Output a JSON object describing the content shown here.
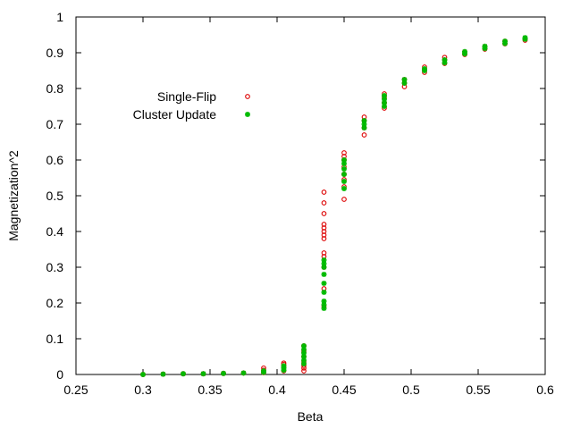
{
  "chart_data": {
    "type": "scatter",
    "title": "",
    "xlabel": "Beta",
    "ylabel": "Magnetization^2",
    "xlim": [
      0.25,
      0.6
    ],
    "ylim": [
      0,
      1
    ],
    "grid": false,
    "legend_position": "top-left",
    "x_ticks": [
      "0.25",
      "0.3",
      "0.35",
      "0.4",
      "0.45",
      "0.5",
      "0.55",
      "0.6"
    ],
    "y_ticks": [
      "0",
      "0.1",
      "0.2",
      "0.3",
      "0.4",
      "0.5",
      "0.6",
      "0.7",
      "0.8",
      "0.9",
      "1"
    ],
    "series": [
      {
        "name": "Single-Flip",
        "color": "#dd0000",
        "marker": "open-circle",
        "points": [
          [
            0.3,
            0.0
          ],
          [
            0.315,
            0.001
          ],
          [
            0.33,
            0.002
          ],
          [
            0.345,
            0.002
          ],
          [
            0.36,
            0.003
          ],
          [
            0.375,
            0.004
          ],
          [
            0.39,
            0.005
          ],
          [
            0.39,
            0.012
          ],
          [
            0.39,
            0.018
          ],
          [
            0.405,
            0.01
          ],
          [
            0.405,
            0.02
          ],
          [
            0.405,
            0.028
          ],
          [
            0.405,
            0.032
          ],
          [
            0.42,
            0.01
          ],
          [
            0.42,
            0.018
          ],
          [
            0.42,
            0.025
          ],
          [
            0.42,
            0.035
          ],
          [
            0.42,
            0.05
          ],
          [
            0.42,
            0.065
          ],
          [
            0.42,
            0.08
          ],
          [
            0.435,
            0.19
          ],
          [
            0.435,
            0.24
          ],
          [
            0.435,
            0.3
          ],
          [
            0.435,
            0.33
          ],
          [
            0.435,
            0.34
          ],
          [
            0.435,
            0.38
          ],
          [
            0.435,
            0.39
          ],
          [
            0.435,
            0.4
          ],
          [
            0.435,
            0.41
          ],
          [
            0.435,
            0.42
          ],
          [
            0.435,
            0.45
          ],
          [
            0.435,
            0.48
          ],
          [
            0.435,
            0.51
          ],
          [
            0.45,
            0.49
          ],
          [
            0.45,
            0.525
          ],
          [
            0.45,
            0.545
          ],
          [
            0.45,
            0.56
          ],
          [
            0.45,
            0.58
          ],
          [
            0.45,
            0.6
          ],
          [
            0.45,
            0.61
          ],
          [
            0.45,
            0.62
          ],
          [
            0.465,
            0.67
          ],
          [
            0.465,
            0.69
          ],
          [
            0.465,
            0.71
          ],
          [
            0.465,
            0.72
          ],
          [
            0.48,
            0.745
          ],
          [
            0.48,
            0.76
          ],
          [
            0.48,
            0.775
          ],
          [
            0.48,
            0.785
          ],
          [
            0.495,
            0.805
          ],
          [
            0.495,
            0.815
          ],
          [
            0.495,
            0.825
          ],
          [
            0.51,
            0.845
          ],
          [
            0.51,
            0.852
          ],
          [
            0.51,
            0.86
          ],
          [
            0.525,
            0.87
          ],
          [
            0.525,
            0.88
          ],
          [
            0.525,
            0.887
          ],
          [
            0.54,
            0.895
          ],
          [
            0.54,
            0.902
          ],
          [
            0.555,
            0.91
          ],
          [
            0.555,
            0.917
          ],
          [
            0.57,
            0.925
          ],
          [
            0.57,
            0.932
          ],
          [
            0.585,
            0.935
          ],
          [
            0.585,
            0.94
          ]
        ]
      },
      {
        "name": "Cluster Update",
        "color": "#00bb00",
        "marker": "filled-star",
        "points": [
          [
            0.3,
            0.0
          ],
          [
            0.315,
            0.001
          ],
          [
            0.33,
            0.002
          ],
          [
            0.345,
            0.002
          ],
          [
            0.36,
            0.003
          ],
          [
            0.375,
            0.004
          ],
          [
            0.39,
            0.006
          ],
          [
            0.39,
            0.01
          ],
          [
            0.405,
            0.012
          ],
          [
            0.405,
            0.018
          ],
          [
            0.405,
            0.024
          ],
          [
            0.42,
            0.03
          ],
          [
            0.42,
            0.04
          ],
          [
            0.42,
            0.05
          ],
          [
            0.42,
            0.06
          ],
          [
            0.42,
            0.07
          ],
          [
            0.42,
            0.08
          ],
          [
            0.435,
            0.185
          ],
          [
            0.435,
            0.195
          ],
          [
            0.435,
            0.205
          ],
          [
            0.435,
            0.23
          ],
          [
            0.435,
            0.255
          ],
          [
            0.435,
            0.28
          ],
          [
            0.435,
            0.3
          ],
          [
            0.435,
            0.31
          ],
          [
            0.435,
            0.32
          ],
          [
            0.45,
            0.52
          ],
          [
            0.45,
            0.54
          ],
          [
            0.45,
            0.56
          ],
          [
            0.45,
            0.575
          ],
          [
            0.45,
            0.59
          ],
          [
            0.45,
            0.6
          ],
          [
            0.465,
            0.69
          ],
          [
            0.465,
            0.7
          ],
          [
            0.465,
            0.71
          ],
          [
            0.48,
            0.75
          ],
          [
            0.48,
            0.76
          ],
          [
            0.48,
            0.77
          ],
          [
            0.48,
            0.78
          ],
          [
            0.495,
            0.815
          ],
          [
            0.495,
            0.825
          ],
          [
            0.51,
            0.85
          ],
          [
            0.51,
            0.855
          ],
          [
            0.525,
            0.872
          ],
          [
            0.525,
            0.88
          ],
          [
            0.54,
            0.897
          ],
          [
            0.54,
            0.903
          ],
          [
            0.555,
            0.912
          ],
          [
            0.555,
            0.918
          ],
          [
            0.57,
            0.926
          ],
          [
            0.57,
            0.932
          ],
          [
            0.585,
            0.938
          ],
          [
            0.585,
            0.942
          ]
        ]
      }
    ]
  }
}
